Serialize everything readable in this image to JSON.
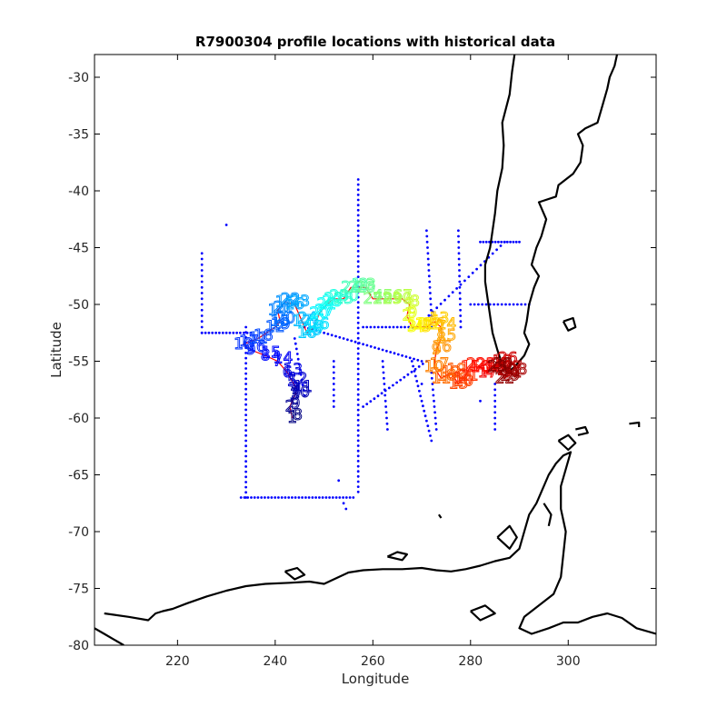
{
  "chart_data": {
    "type": "scatter",
    "title": "R7900304 profile locations with historical data",
    "xlabel": "Longitude",
    "ylabel": "Latitude",
    "xlim": [
      203,
      318
    ],
    "ylim": [
      -80,
      -28
    ],
    "xticks": [
      220,
      240,
      260,
      280,
      300
    ],
    "yticks": [
      -30,
      -35,
      -40,
      -45,
      -50,
      -55,
      -60,
      -65,
      -70,
      -75,
      -80
    ],
    "grid": false,
    "colormap": "jet",
    "colors": {
      "historical": "#0000ff",
      "coast": "#000000",
      "trajectory_line": "#ff0000",
      "frame": "#000000"
    },
    "historical_tracks": [
      {
        "x": [
          225,
          225
        ],
        "y": [
          -45.5,
          -52.5
        ],
        "step": 0.5
      },
      {
        "x": [
          225,
          235
        ],
        "y": [
          -52.5,
          -52.5
        ],
        "step": 0.7
      },
      {
        "x": [
          257,
          257
        ],
        "y": [
          -39,
          -66.5
        ],
        "step": 0.45
      },
      {
        "x": [
          234,
          234
        ],
        "y": [
          -52,
          -67
        ],
        "step": 0.45
      },
      {
        "x": [
          233,
          256
        ],
        "y": [
          -67,
          -67
        ],
        "step": 0.7
      },
      {
        "x": [
          246,
          270
        ],
        "y": [
          -52,
          -55
        ],
        "step": 0.8
      },
      {
        "x": [
          258,
          272
        ],
        "y": [
          -52,
          -52
        ],
        "step": 0.8
      },
      {
        "x": [
          271,
          272
        ],
        "y": [
          -43.5,
          -51
        ],
        "step": 0.5
      },
      {
        "x": [
          277.5,
          278
        ],
        "y": [
          -43.5,
          -52
        ],
        "step": 0.5
      },
      {
        "x": [
          269,
          287
        ],
        "y": [
          -52,
          -44.5
        ],
        "step": 0.9
      },
      {
        "x": [
          282,
          290
        ],
        "y": [
          -44.5,
          -44.5
        ],
        "step": 0.6
      },
      {
        "x": [
          280,
          292
        ],
        "y": [
          -50,
          -50
        ],
        "step": 0.8
      },
      {
        "x": [
          258,
          271
        ],
        "y": [
          -59,
          -55
        ],
        "step": 0.8
      },
      {
        "x": [
          262,
          263
        ],
        "y": [
          -55,
          -61
        ],
        "step": 0.5
      },
      {
        "x": [
          272,
          273
        ],
        "y": [
          -56,
          -61
        ],
        "step": 0.5
      },
      {
        "x": [
          244,
          246
        ],
        "y": [
          -53,
          -58
        ],
        "step": 0.5
      },
      {
        "x": [
          252,
          252
        ],
        "y": [
          -55,
          -59
        ],
        "step": 0.5
      },
      {
        "x": [
          285,
          285
        ],
        "y": [
          -57,
          -61
        ],
        "step": 0.5
      },
      {
        "x": [
          268,
          272
        ],
        "y": [
          -55,
          -62
        ],
        "step": 0.5
      }
    ],
    "historical_points": [
      {
        "x": 230,
        "y": -43
      },
      {
        "x": 253,
        "y": -65.5
      },
      {
        "x": 254,
        "y": -67.5
      },
      {
        "x": 254.5,
        "y": -68
      },
      {
        "x": 270,
        "y": -57
      },
      {
        "x": 282,
        "y": -58.5
      }
    ],
    "profile_path": [
      [
        243.5,
        -60.0
      ],
      [
        243.0,
        -59.0
      ],
      [
        244.0,
        -58.0
      ],
      [
        244.5,
        -57.5
      ],
      [
        243.5,
        -56.8
      ],
      [
        242.5,
        -56.0
      ],
      [
        240.5,
        -55.0
      ],
      [
        238.0,
        -54.5
      ],
      [
        235.0,
        -54.0
      ],
      [
        233.5,
        -53.5
      ],
      [
        236.5,
        -53.0
      ],
      [
        240.0,
        -52.0
      ],
      [
        241.0,
        -51.5
      ],
      [
        240.5,
        -50.5
      ],
      [
        242.0,
        -49.8
      ],
      [
        244.0,
        -50.0
      ],
      [
        245.5,
        -51.5
      ],
      [
        246.5,
        -52.5
      ],
      [
        248.0,
        -52.0
      ],
      [
        249.0,
        -50.8
      ],
      [
        250.5,
        -50.0
      ],
      [
        252.0,
        -49.5
      ],
      [
        254.0,
        -49.5
      ],
      [
        255.5,
        -48.5
      ],
      [
        257.0,
        -48.5
      ],
      [
        258.5,
        -48.5
      ],
      [
        260.0,
        -49.5
      ],
      [
        262.0,
        -49.5
      ],
      [
        264.0,
        -49.5
      ],
      [
        266.0,
        -49.5
      ],
      [
        267.5,
        -50.0
      ],
      [
        267.0,
        -51.0
      ],
      [
        268.0,
        -52.0
      ],
      [
        269.5,
        -52.0
      ],
      [
        271.0,
        -52.0
      ],
      [
        272.5,
        -51.5
      ],
      [
        274.0,
        -52.0
      ],
      [
        274.0,
        -53.0
      ],
      [
        273.0,
        -54.0
      ],
      [
        272.5,
        -55.5
      ],
      [
        274.0,
        -56.5
      ],
      [
        276.0,
        -56.0
      ],
      [
        277.5,
        -57.0
      ],
      [
        278.5,
        -56.5
      ],
      [
        280.0,
        -55.5
      ],
      [
        282.0,
        -55.5
      ],
      [
        283.5,
        -56.0
      ],
      [
        285.0,
        -55.5
      ],
      [
        286.5,
        -55.0
      ],
      [
        287.5,
        -55.8
      ],
      [
        288.5,
        -56.0
      ],
      [
        287.0,
        -56.5
      ],
      [
        285.5,
        -55.5
      ]
    ],
    "profile_labels": [
      "1",
      "2",
      "3",
      "4",
      "5",
      "6",
      "7",
      "8",
      "9",
      "10",
      "11",
      "12",
      "13",
      "14",
      "15",
      "16",
      "17",
      "18",
      "19",
      "20",
      "21",
      "22",
      "23",
      "24",
      "25",
      "26",
      "27",
      "28",
      "29",
      "30"
    ],
    "coastlines": [
      [
        [
          287.5,
          -56.0
        ],
        [
          286.5,
          -55.3
        ],
        [
          285.5,
          -54.0
        ],
        [
          284.5,
          -52.5
        ],
        [
          284.0,
          -51.0
        ],
        [
          283.5,
          -49.5
        ],
        [
          283.0,
          -48.0
        ],
        [
          283.0,
          -46.5
        ],
        [
          284.0,
          -45.0
        ],
        [
          284.5,
          -43.5
        ],
        [
          285.0,
          -42.0
        ],
        [
          285.5,
          -40.0
        ],
        [
          286.5,
          -38.0
        ],
        [
          286.8,
          -36.0
        ],
        [
          286.5,
          -34.0
        ],
        [
          288.0,
          -31.5
        ],
        [
          288.5,
          -29.5
        ],
        [
          289.0,
          -28.0
        ]
      ],
      [
        [
          310.0,
          -28.0
        ],
        [
          309.5,
          -29.0
        ],
        [
          308.5,
          -30.0
        ],
        [
          308.0,
          -31.0
        ],
        [
          307.0,
          -32.5
        ],
        [
          306.0,
          -34.0
        ],
        [
          303.5,
          -34.5
        ],
        [
          302.0,
          -35.0
        ],
        [
          303.0,
          -36.0
        ],
        [
          302.5,
          -37.5
        ],
        [
          301.0,
          -38.5
        ],
        [
          298.0,
          -39.5
        ],
        [
          297.5,
          -40.5
        ],
        [
          294.0,
          -41.0
        ],
        [
          295.5,
          -42.5
        ],
        [
          294.5,
          -44.0
        ],
        [
          293.5,
          -45.0
        ],
        [
          292.5,
          -46.5
        ],
        [
          294.0,
          -47.5
        ],
        [
          293.0,
          -48.5
        ],
        [
          292.0,
          -50.0
        ],
        [
          291.5,
          -51.5
        ],
        [
          291.0,
          -52.5
        ],
        [
          292.0,
          -53.5
        ],
        [
          291.0,
          -54.5
        ],
        [
          290.0,
          -55.0
        ],
        [
          289.0,
          -55.5
        ],
        [
          287.5,
          -56.0
        ]
      ],
      [
        [
          205.0,
          -77.2
        ],
        [
          210.0,
          -77.5
        ],
        [
          214.0,
          -77.8
        ],
        [
          215.5,
          -77.2
        ],
        [
          217.0,
          -77.0
        ],
        [
          219.0,
          -76.8
        ],
        [
          222.0,
          -76.3
        ],
        [
          226.0,
          -75.7
        ],
        [
          230.0,
          -75.2
        ],
        [
          234.0,
          -74.8
        ],
        [
          238.0,
          -74.6
        ],
        [
          243.0,
          -74.5
        ],
        [
          247.0,
          -74.4
        ],
        [
          250.0,
          -74.6
        ],
        [
          253.0,
          -74.0
        ],
        [
          255.0,
          -73.6
        ],
        [
          258.0,
          -73.4
        ],
        [
          262.0,
          -73.3
        ],
        [
          266.0,
          -73.3
        ],
        [
          270.0,
          -73.2
        ],
        [
          273.0,
          -73.4
        ],
        [
          276.0,
          -73.5
        ],
        [
          279.0,
          -73.3
        ],
        [
          282.0,
          -73.0
        ],
        [
          285.0,
          -72.6
        ],
        [
          288.0,
          -72.3
        ],
        [
          290.0,
          -71.5
        ],
        [
          291.0,
          -70.0
        ],
        [
          292.0,
          -68.5
        ],
        [
          293.5,
          -67.5
        ],
        [
          294.5,
          -66.5
        ],
        [
          296.0,
          -65.0
        ],
        [
          297.5,
          -64.0
        ],
        [
          299.0,
          -63.3
        ],
        [
          300.5,
          -63.0
        ],
        [
          299.5,
          -64.5
        ],
        [
          298.5,
          -66.0
        ],
        [
          298.5,
          -68.0
        ],
        [
          299.5,
          -70.0
        ],
        [
          299.0,
          -72.0
        ],
        [
          298.5,
          -74.0
        ],
        [
          297.0,
          -75.5
        ],
        [
          294.0,
          -76.5
        ],
        [
          291.0,
          -77.5
        ],
        [
          290.0,
          -78.5
        ],
        [
          292.5,
          -79.0
        ],
        [
          296.0,
          -78.5
        ],
        [
          299.0,
          -78.0
        ],
        [
          302.0,
          -78.0
        ],
        [
          305.0,
          -77.5
        ],
        [
          308.0,
          -77.2
        ],
        [
          311.0,
          -77.6
        ],
        [
          314.0,
          -78.5
        ],
        [
          318.0,
          -79.0
        ]
      ],
      [
        [
          203.0,
          -78.5
        ],
        [
          205.0,
          -79.0
        ],
        [
          207.0,
          -79.5
        ],
        [
          209.0,
          -80.0
        ]
      ],
      [
        [
          263.0,
          -72.2
        ],
        [
          265.0,
          -71.8
        ],
        [
          267.0,
          -72.0
        ],
        [
          266.0,
          -72.5
        ],
        [
          263.0,
          -72.2
        ]
      ],
      [
        [
          242.0,
          -73.5
        ],
        [
          244.5,
          -73.2
        ],
        [
          246.0,
          -73.8
        ],
        [
          244.0,
          -74.2
        ],
        [
          242.0,
          -73.5
        ]
      ],
      [
        [
          285.5,
          -70.5
        ],
        [
          288.0,
          -69.5
        ],
        [
          289.5,
          -70.5
        ],
        [
          288.0,
          -71.5
        ],
        [
          285.5,
          -70.5
        ]
      ],
      [
        [
          298.0,
          -62.0
        ],
        [
          300.0,
          -61.5
        ],
        [
          301.5,
          -62.2
        ],
        [
          300.0,
          -62.8
        ],
        [
          298.0,
          -62.0
        ]
      ],
      [
        [
          301.5,
          -61.0
        ],
        [
          303.5,
          -60.8
        ],
        [
          304.0,
          -61.3
        ],
        [
          302.0,
          -61.5
        ]
      ],
      [
        [
          299.0,
          -51.5
        ],
        [
          301.0,
          -51.2
        ],
        [
          301.5,
          -52.0
        ],
        [
          300.0,
          -52.3
        ],
        [
          299.0,
          -51.5
        ]
      ],
      [
        [
          312.5,
          -60.5
        ],
        [
          314.5,
          -60.4
        ],
        [
          314.5,
          -60.8
        ]
      ],
      [
        [
          273.5,
          -68.5
        ],
        [
          274.0,
          -68.8
        ]
      ],
      [
        [
          280.0,
          -77.0
        ],
        [
          283.0,
          -76.5
        ],
        [
          285.0,
          -77.2
        ],
        [
          282.0,
          -77.8
        ],
        [
          280.0,
          -77.0
        ]
      ],
      [
        [
          295.0,
          -67.5
        ],
        [
          296.5,
          -68.5
        ],
        [
          296.0,
          -69.5
        ]
      ]
    ]
  }
}
